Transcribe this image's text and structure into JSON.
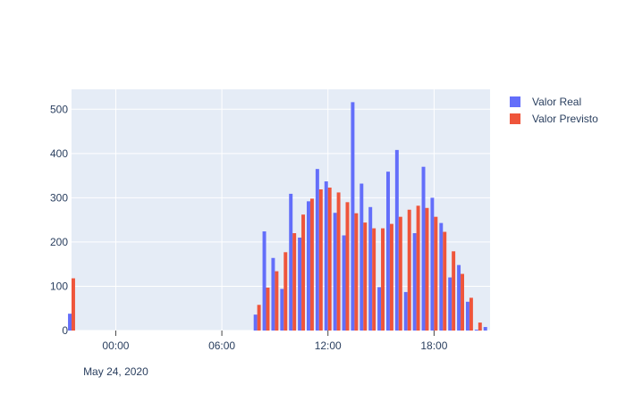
{
  "chart_data": {
    "type": "bar",
    "xaxis_type": "date",
    "x_range": [
      "2020-05-23T21:30",
      "2020-05-24T21:10"
    ],
    "ylim": [
      0,
      545
    ],
    "x_tick_labels": [
      "00:00",
      "06:00",
      "12:00",
      "18:00"
    ],
    "x_tick_positions": [
      "2020-05-24T00:00",
      "2020-05-24T06:00",
      "2020-05-24T12:00",
      "2020-05-24T18:00"
    ],
    "x_date_label": "May 24, 2020",
    "y_ticks": [
      0,
      100,
      200,
      300,
      400,
      500
    ],
    "grid": true,
    "legend_position": "top-right",
    "colors": {
      "plot_bg": "#e5ecf6",
      "grid": "#ffffff",
      "text": "#2a3f5f"
    },
    "series": [
      {
        "name": "Valor Real",
        "color": "#636efa",
        "values": [
          {
            "x": "2020-05-23T21:30",
            "y": 38
          },
          {
            "x": "2020-05-24T08:00",
            "y": 36
          },
          {
            "x": "2020-05-24T08:30",
            "y": 224
          },
          {
            "x": "2020-05-24T09:00",
            "y": 164
          },
          {
            "x": "2020-05-24T09:30",
            "y": 94
          },
          {
            "x": "2020-05-24T10:00",
            "y": 309
          },
          {
            "x": "2020-05-24T10:30",
            "y": 210
          },
          {
            "x": "2020-05-24T11:00",
            "y": 292
          },
          {
            "x": "2020-05-24T11:30",
            "y": 365
          },
          {
            "x": "2020-05-24T12:00",
            "y": 337
          },
          {
            "x": "2020-05-24T12:30",
            "y": 266
          },
          {
            "x": "2020-05-24T13:00",
            "y": 215
          },
          {
            "x": "2020-05-24T13:30",
            "y": 516
          },
          {
            "x": "2020-05-24T14:00",
            "y": 332
          },
          {
            "x": "2020-05-24T14:30",
            "y": 279
          },
          {
            "x": "2020-05-24T15:00",
            "y": 98
          },
          {
            "x": "2020-05-24T15:30",
            "y": 359
          },
          {
            "x": "2020-05-24T16:00",
            "y": 408
          },
          {
            "x": "2020-05-24T16:30",
            "y": 87
          },
          {
            "x": "2020-05-24T17:00",
            "y": 220
          },
          {
            "x": "2020-05-24T17:30",
            "y": 370
          },
          {
            "x": "2020-05-24T18:00",
            "y": 300
          },
          {
            "x": "2020-05-24T18:30",
            "y": 243
          },
          {
            "x": "2020-05-24T19:00",
            "y": 120
          },
          {
            "x": "2020-05-24T19:30",
            "y": 148
          },
          {
            "x": "2020-05-24T20:00",
            "y": 65
          },
          {
            "x": "2020-05-24T20:30",
            "y": 2
          },
          {
            "x": "2020-05-24T21:00",
            "y": 8
          }
        ]
      },
      {
        "name": "Valor Previsto",
        "color": "#ef553b",
        "values": [
          {
            "x": "2020-05-23T21:30",
            "y": 118
          },
          {
            "x": "2020-05-24T08:00",
            "y": 58
          },
          {
            "x": "2020-05-24T08:30",
            "y": 97
          },
          {
            "x": "2020-05-24T09:00",
            "y": 134
          },
          {
            "x": "2020-05-24T09:30",
            "y": 177
          },
          {
            "x": "2020-05-24T10:00",
            "y": 220
          },
          {
            "x": "2020-05-24T10:30",
            "y": 262
          },
          {
            "x": "2020-05-24T11:00",
            "y": 298
          },
          {
            "x": "2020-05-24T11:30",
            "y": 319
          },
          {
            "x": "2020-05-24T12:00",
            "y": 323
          },
          {
            "x": "2020-05-24T12:30",
            "y": 312
          },
          {
            "x": "2020-05-24T13:00",
            "y": 290
          },
          {
            "x": "2020-05-24T13:30",
            "y": 265
          },
          {
            "x": "2020-05-24T14:00",
            "y": 244
          },
          {
            "x": "2020-05-24T14:30",
            "y": 231
          },
          {
            "x": "2020-05-24T15:00",
            "y": 231
          },
          {
            "x": "2020-05-24T15:30",
            "y": 241
          },
          {
            "x": "2020-05-24T16:00",
            "y": 257
          },
          {
            "x": "2020-05-24T16:30",
            "y": 273
          },
          {
            "x": "2020-05-24T17:00",
            "y": 282
          },
          {
            "x": "2020-05-24T17:30",
            "y": 277
          },
          {
            "x": "2020-05-24T18:00",
            "y": 257
          },
          {
            "x": "2020-05-24T18:30",
            "y": 223
          },
          {
            "x": "2020-05-24T19:00",
            "y": 179
          },
          {
            "x": "2020-05-24T19:30",
            "y": 128
          },
          {
            "x": "2020-05-24T20:00",
            "y": 74
          },
          {
            "x": "2020-05-24T20:30",
            "y": 18
          },
          {
            "x": "2020-05-24T21:00",
            "y": 0
          }
        ]
      }
    ]
  }
}
